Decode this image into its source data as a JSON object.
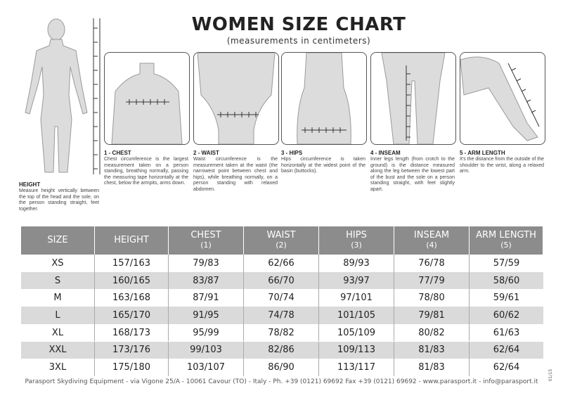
{
  "header": {
    "title": "WOMEN SIZE CHART",
    "subtitle": "(measurements in centimeters)"
  },
  "height_guide": {
    "title": "HEIGHT",
    "text": "Measure height vertically between the top of the head and the sole, on the person standing straight, feet together."
  },
  "measures": [
    {
      "title": "1 - CHEST",
      "text": "Chest circumference is the largest measurement taken on a person standing, breathing normally, passing the measuring tape horizontally at the chest, below the armpits, arms down."
    },
    {
      "title": "2 - WAIST",
      "text": "Waist circumference is the measurement taken at the waist (the narrowest point between chest and hips), while breathing normally, on a person standing with relaxed abdomen."
    },
    {
      "title": "3 - HIPS",
      "text": "Hips circumference is taken horizontally at the widest point of the basin (buttocks)."
    },
    {
      "title": "4 - INSEAM",
      "text": "Inner legs length (from crotch to the ground) is the distance measured along the leg between the lowest part of the bust and the sole on a person standing straight, with feet slightly apart."
    },
    {
      "title": "5 - ARM LENGTH",
      "text": "It's the distance from the outside of the shoulder to the wrist, along a relaxed arm."
    }
  ],
  "table": {
    "columns": [
      {
        "title": "SIZE"
      },
      {
        "title": "HEIGHT"
      },
      {
        "title": "CHEST",
        "note": "(1)"
      },
      {
        "title": "WAIST",
        "note": "(2)"
      },
      {
        "title": "HIPS",
        "note": "(3)"
      },
      {
        "title": "INSEAM",
        "note": "(4)"
      },
      {
        "title": "ARM LENGTH",
        "note": "(5)"
      }
    ],
    "rows": [
      [
        "XS",
        "157/163",
        "79/83",
        "62/66",
        "89/93",
        "76/78",
        "57/59"
      ],
      [
        "S",
        "160/165",
        "83/87",
        "66/70",
        "93/97",
        "77/79",
        "58/60"
      ],
      [
        "M",
        "163/168",
        "87/91",
        "70/74",
        "97/101",
        "78/80",
        "59/61"
      ],
      [
        "L",
        "165/170",
        "91/95",
        "74/78",
        "101/105",
        "79/81",
        "60/62"
      ],
      [
        "XL",
        "168/173",
        "95/99",
        "78/82",
        "105/109",
        "80/82",
        "61/63"
      ],
      [
        "XXL",
        "173/176",
        "99/103",
        "82/86",
        "109/113",
        "81/83",
        "62/64"
      ],
      [
        "3XL",
        "175/180",
        "103/107",
        "86/90",
        "113/117",
        "81/83",
        "62/64"
      ]
    ]
  },
  "footer": {
    "text": "Parasport Skydiving Equipment - via Vigone 25/A - 10061 Cavour (TO) - Italy - Ph. +39 (0121) 69692 Fax +39 (0121) 69692 - www.parasport.it - info@parasport.it",
    "code": "01/15"
  }
}
